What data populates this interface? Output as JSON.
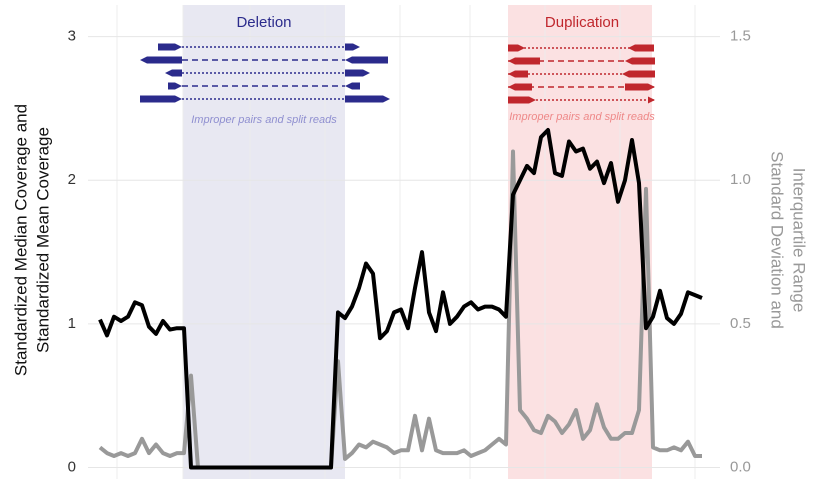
{
  "chart_data": {
    "type": "line",
    "y_label": [
      "Standardized Median Coverage and",
      "Standardized Mean Coverage"
    ],
    "y2_label": [
      "Standard Deviation and",
      "Interquartile Range"
    ],
    "annotations": [
      "Deletion",
      "Duplication",
      "Improper pairs and split reads",
      "Improper pairs and split reads"
    ],
    "ylim": [
      -0.08,
      3.22
    ],
    "yticks": [
      0,
      1,
      2,
      3
    ],
    "y2lim": [
      -0.04,
      1.61
    ],
    "y2ticks": [
      {
        "value": 0,
        "label": "0.0"
      },
      {
        "value": 0.5,
        "label": "0.5"
      },
      {
        "value": 1,
        "label": "1.0"
      },
      {
        "value": 1.5,
        "label": "1.5"
      }
    ],
    "grid": true,
    "series": [
      {
        "color": "#000000",
        "values": [
          1.03,
          0.92,
          1.05,
          1.02,
          1.05,
          1.15,
          1.13,
          0.98,
          0.93,
          1.02,
          0.96,
          0.97,
          0.97,
          0,
          0,
          0,
          0,
          0,
          0,
          0,
          0,
          0,
          0,
          0,
          0,
          0,
          0,
          0,
          0,
          0,
          0,
          0,
          0,
          0,
          1.08,
          1.04,
          1.12,
          1.25,
          1.42,
          1.35,
          0.9,
          0.95,
          1.08,
          1.1,
          0.97,
          1.25,
          1.5,
          1.08,
          0.95,
          1.22,
          1.0,
          1.05,
          1.12,
          1.15,
          1.1,
          1.12,
          1.12,
          1.1,
          1.05,
          1.9,
          2.0,
          2.1,
          2.05,
          2.3,
          2.35,
          2.05,
          2.03,
          2.27,
          2.2,
          2.22,
          2.08,
          2.13,
          1.98,
          2.12,
          1.85,
          2.0,
          2.28,
          1.98,
          0.97,
          1.05,
          1.23,
          1.04,
          1.0,
          1.07,
          1.22,
          1.2,
          1.18
        ]
      },
      {
        "color": "#999999",
        "axis": "y2",
        "values": [
          0.07,
          0.05,
          0.04,
          0.05,
          0.04,
          0.05,
          0.1,
          0.05,
          0.08,
          0.05,
          0.04,
          0.05,
          0.05,
          0.32,
          0,
          0,
          0,
          0,
          0,
          0,
          0,
          0,
          0,
          0,
          0,
          0,
          0,
          0,
          0,
          0,
          0,
          0,
          0,
          0,
          0.37,
          0.03,
          0.05,
          0.08,
          0.07,
          0.09,
          0.08,
          0.07,
          0.05,
          0.06,
          0.06,
          0.18,
          0.06,
          0.17,
          0.06,
          0.05,
          0.05,
          0.05,
          0.06,
          0.04,
          0.05,
          0.06,
          0.08,
          0.1,
          0.08,
          1.1,
          0.2,
          0.17,
          0.13,
          0.12,
          0.18,
          0.16,
          0.12,
          0.15,
          0.2,
          0.1,
          0.13,
          0.22,
          0.14,
          0.1,
          0.1,
          0.12,
          0.12,
          0.2,
          0.97,
          0.07,
          0.06,
          0.06,
          0.07,
          0.06,
          0.09,
          0.04,
          0.04
        ]
      }
    ]
  }
}
